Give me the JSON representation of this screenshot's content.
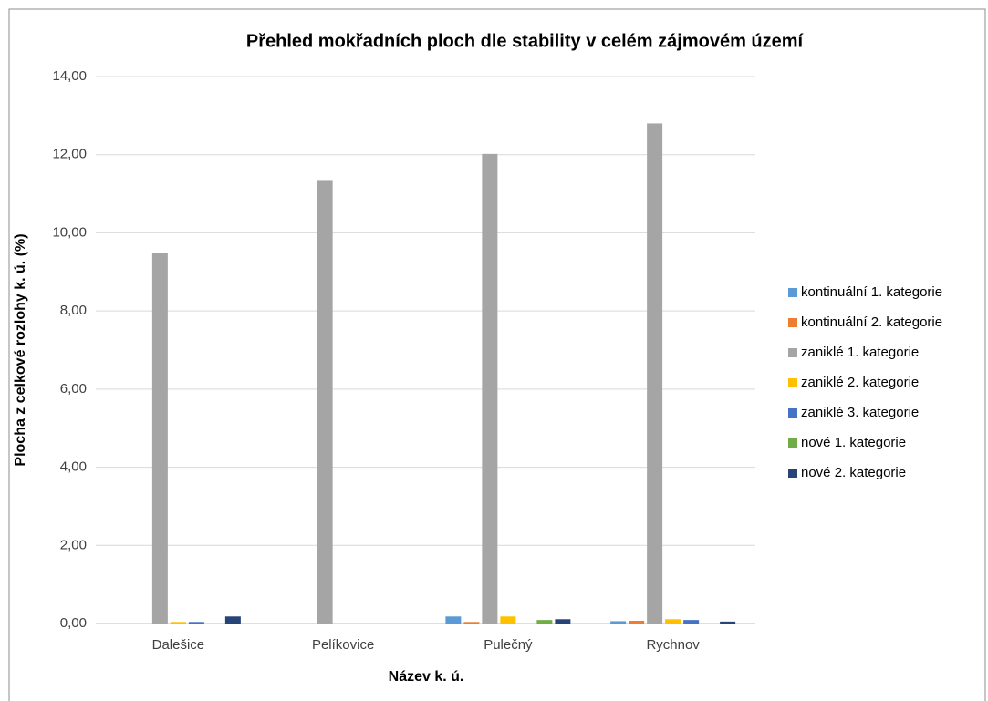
{
  "chart_data": {
    "type": "bar",
    "title": "Přehled mokřadních ploch dle stability v celém zájmovém území",
    "x_label": "Název k. ú.",
    "y_label": "Plocha z celkové rozlohy k. ú. (%)",
    "categories": [
      "Dalešice",
      "Pelíkovice",
      "Pulečný",
      "Rychnov"
    ],
    "series": [
      {
        "name": "kontinuální 1. kategorie",
        "color": "#5b9bd5",
        "values": [
          0,
          0,
          0.18,
          0.06
        ]
      },
      {
        "name": "kontinuální 2. kategorie",
        "color": "#ed7d31",
        "values": [
          0,
          0,
          0.04,
          0.07
        ]
      },
      {
        "name": "zaniklé 1. kategorie",
        "color": "#a5a5a5",
        "values": [
          9.48,
          11.33,
          12.02,
          12.8
        ]
      },
      {
        "name": "zaniklé 2. kategorie",
        "color": "#ffc000",
        "values": [
          0.04,
          0,
          0.18,
          0.11
        ]
      },
      {
        "name": "zaniklé 3. kategorie",
        "color": "#4472c4",
        "values": [
          0.04,
          0,
          0,
          0.09
        ]
      },
      {
        "name": "nové 1. kategorie",
        "color": "#70ad47",
        "values": [
          0,
          0,
          0.09,
          0
        ]
      },
      {
        "name": "nové 2. kategorie",
        "color": "#264478",
        "values": [
          0.18,
          0,
          0.11,
          0.05
        ]
      }
    ],
    "ylim": [
      0,
      14
    ],
    "yticks": [
      {
        "value": 0,
        "label": "0,00"
      },
      {
        "value": 2,
        "label": "2,00"
      },
      {
        "value": 4,
        "label": "4,00"
      },
      {
        "value": 6,
        "label": "6,00"
      },
      {
        "value": 8,
        "label": "8,00"
      },
      {
        "value": 10,
        "label": "10,00"
      },
      {
        "value": 12,
        "label": "12,00"
      },
      {
        "value": 14,
        "label": "14,00"
      }
    ],
    "grid": true,
    "legend": "right"
  }
}
